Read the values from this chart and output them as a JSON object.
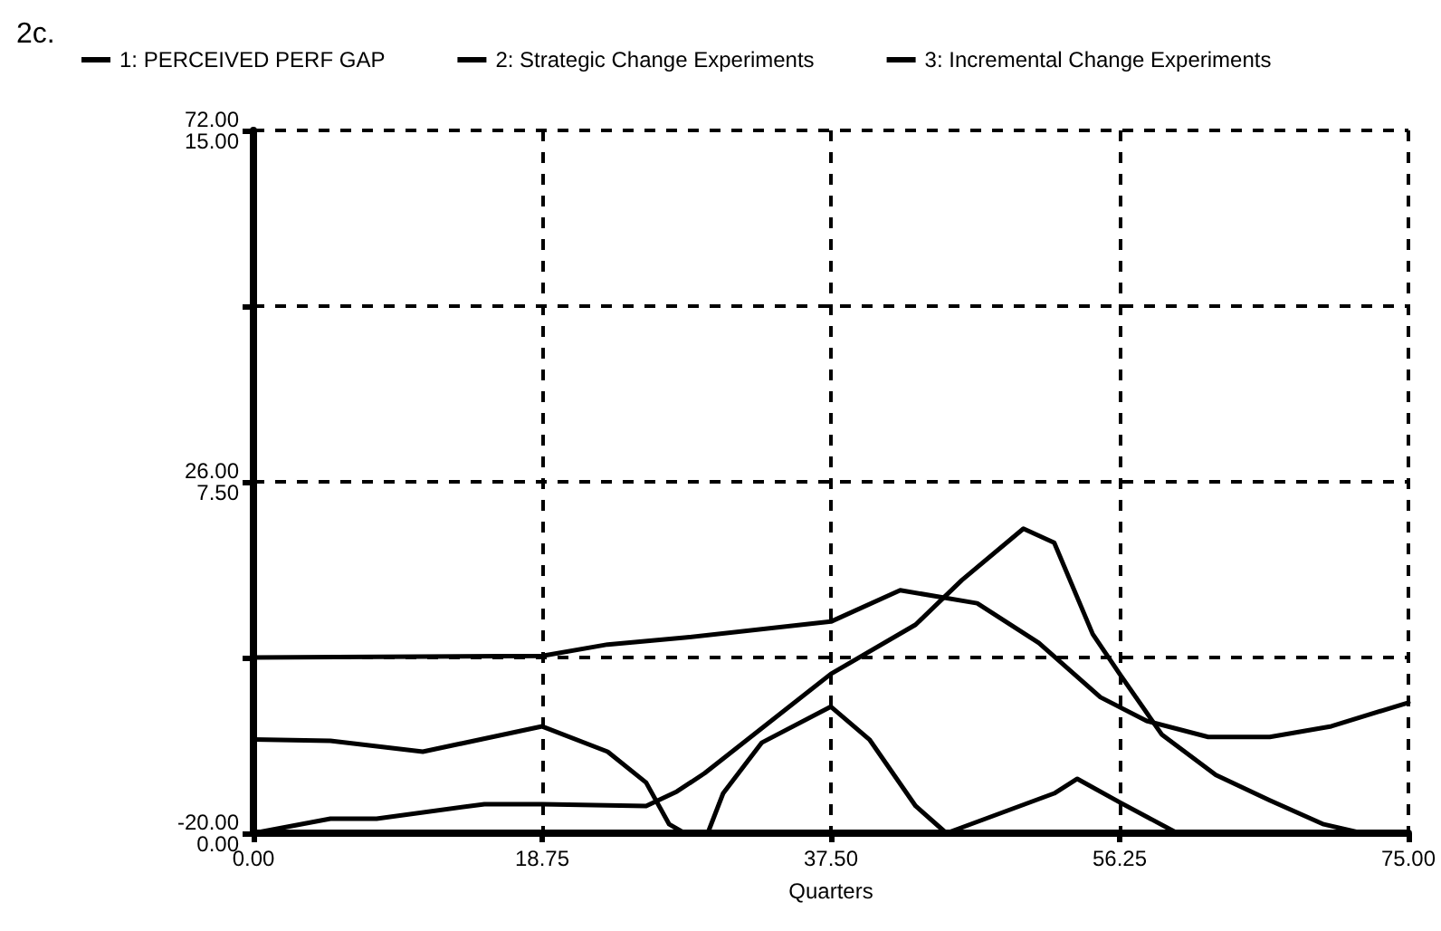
{
  "chart_data": {
    "type": "line",
    "title": "2c.",
    "xlabel": "Quarters",
    "grid": true,
    "legend": "top",
    "marker": "none",
    "line_style": "solid",
    "xlim": [
      0,
      75
    ],
    "xticks": [
      {
        "value": 0,
        "label": "0.00"
      },
      {
        "value": 18.75,
        "label": "18.75"
      },
      {
        "value": 37.5,
        "label": "37.50"
      },
      {
        "value": 56.25,
        "label": "56.25"
      },
      {
        "value": 75,
        "label": "75.00"
      }
    ],
    "ylim": [
      -20,
      72
    ],
    "yticks": [
      {
        "value": -20,
        "label": "-20.00"
      },
      {
        "value": 3,
        "label": null
      },
      {
        "value": 26,
        "label": "26.00"
      },
      {
        "value": 49,
        "label": null
      },
      {
        "value": 72,
        "label": "72.00"
      }
    ],
    "y2lim": [
      0,
      15
    ],
    "y2ticks": [
      {
        "value": 0,
        "label": "0.00"
      },
      {
        "value": 3.75,
        "label": null
      },
      {
        "value": 7.5,
        "label": "7.50"
      },
      {
        "value": 11.25,
        "label": null
      },
      {
        "value": 15,
        "label": "15.00"
      }
    ],
    "series": [
      {
        "name": "1: PERCEIVED PERF GAP",
        "color": "#000000",
        "x": [
          0,
          18.75,
          23,
          28,
          37.5,
          42,
          47,
          51,
          55,
          58,
          62,
          66,
          70,
          75
        ],
        "values": [
          3,
          3.2,
          4.7,
          5.6,
          7.7,
          11.8,
          10.1,
          4.9,
          -2.2,
          -5.3,
          -7.4,
          -7.4,
          -6,
          -2.9
        ]
      },
      {
        "name": "2: Strategic Change Experiments",
        "color": "#000000",
        "axis": "y2",
        "x": [
          0,
          5,
          8,
          15,
          18.75,
          25.5,
          27.5,
          29.3,
          37.5,
          43,
          46,
          50,
          52,
          54.5,
          56.25,
          59,
          62.5,
          66,
          69.5,
          72,
          75
        ],
        "values": [
          0,
          0.31,
          0.31,
          0.62,
          0.62,
          0.58,
          0.89,
          1.28,
          3.4,
          4.45,
          5.4,
          6.5,
          6.2,
          4.25,
          3.4,
          2.1,
          1.24,
          0.7,
          0.19,
          0,
          0
        ]
      },
      {
        "name": "3: Incremental Change Experiments",
        "color": "#000000",
        "axis": "y2",
        "x": [
          0,
          5,
          11,
          18.75,
          23,
          25.5,
          27,
          28,
          29.5,
          30.5,
          33,
          37.5,
          40,
          43,
          45,
          52,
          53.5,
          56.25,
          60,
          75
        ],
        "values": [
          2,
          1.97,
          1.74,
          2.28,
          1.74,
          1.08,
          0.19,
          0,
          0,
          0.85,
          1.93,
          2.7,
          2,
          0.58,
          0,
          0.85,
          1.16,
          0.66,
          0,
          0
        ]
      }
    ]
  }
}
